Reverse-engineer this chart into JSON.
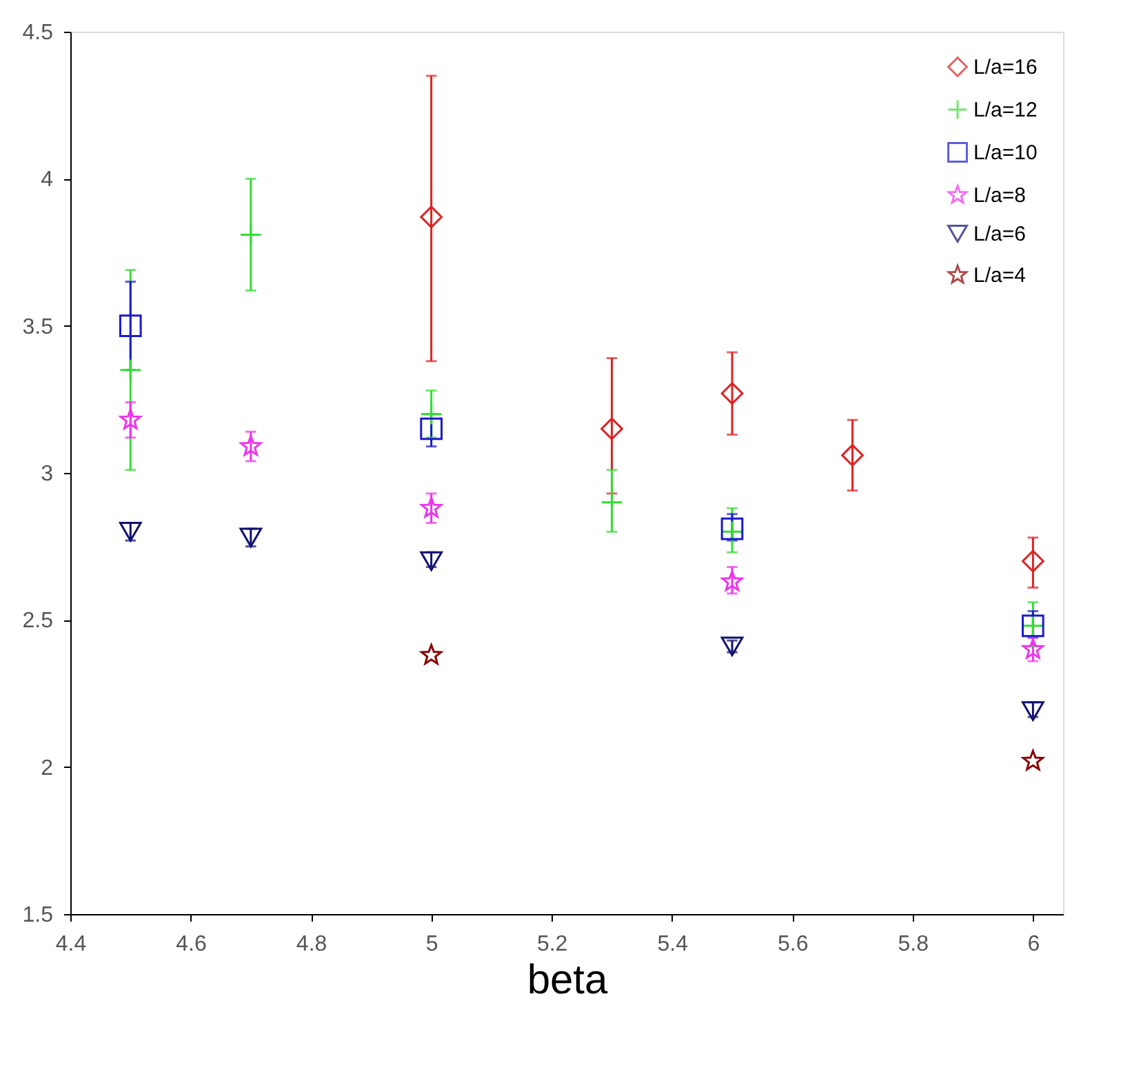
{
  "chart_data": {
    "type": "scatter",
    "xlabel": "beta",
    "xlim": [
      4.4,
      6.05
    ],
    "xticks": [
      4.4,
      4.6,
      4.8,
      5,
      5.2,
      5.4,
      5.6,
      5.8,
      6
    ],
    "ylim": [
      1.5,
      4.5
    ],
    "yticks": [
      1.5,
      2,
      2.5,
      3,
      3.5,
      4,
      4.5
    ],
    "grid": false,
    "legend": "top right",
    "series": [
      {
        "name": "L/a=16",
        "color": "#dd2222",
        "marker": "diamond",
        "x": [
          5.0,
          5.3,
          5.5,
          5.7,
          6.0
        ],
        "values": [
          3.87,
          3.15,
          3.27,
          3.06,
          2.7
        ],
        "errors": [
          [
            3.38,
            4.35
          ],
          [
            2.93,
            3.39
          ],
          [
            3.13,
            3.41
          ],
          [
            2.94,
            3.18
          ],
          [
            2.61,
            2.78
          ]
        ]
      },
      {
        "name": "L/a=12",
        "color": "#33dd33",
        "marker": "cross",
        "x": [
          4.5,
          4.7,
          5.0,
          5.3,
          5.5,
          6.0
        ],
        "values": [
          3.35,
          3.81,
          3.2,
          2.9,
          2.8,
          2.48
        ],
        "errors": [
          [
            3.01,
            3.69
          ],
          [
            3.62,
            4.0
          ],
          [
            3.12,
            3.28
          ],
          [
            2.8,
            3.01
          ],
          [
            2.73,
            2.88
          ],
          [
            2.41,
            2.56
          ]
        ]
      },
      {
        "name": "L/a=10",
        "color": "#1a1acc",
        "marker": "square",
        "x": [
          4.5,
          5.0,
          5.5,
          6.0
        ],
        "values": [
          3.5,
          3.15,
          2.81,
          2.48
        ],
        "errors": [
          [
            3.35,
            3.65
          ],
          [
            3.09,
            3.2
          ],
          [
            2.77,
            2.86
          ],
          [
            2.44,
            2.53
          ]
        ]
      },
      {
        "name": "L/a=8",
        "color": "#ee33ee",
        "marker": "star",
        "x": [
          4.5,
          4.7,
          5.0,
          5.5,
          6.0
        ],
        "values": [
          3.18,
          3.09,
          2.88,
          2.63,
          2.4
        ],
        "errors": [
          [
            3.12,
            3.24
          ],
          [
            3.04,
            3.14
          ],
          [
            2.83,
            2.93
          ],
          [
            2.59,
            2.68
          ],
          [
            2.36,
            2.44
          ]
        ]
      },
      {
        "name": "L/a=6",
        "color": "#101070",
        "marker": "triangle",
        "x": [
          4.5,
          4.7,
          5.0,
          5.5,
          6.0
        ],
        "values": [
          2.8,
          2.78,
          2.7,
          2.41,
          2.19
        ],
        "errors": [
          [
            2.77,
            2.83
          ],
          [
            2.75,
            2.81
          ],
          [
            2.68,
            2.73
          ],
          [
            2.39,
            2.43
          ],
          [
            2.17,
            2.22
          ]
        ]
      },
      {
        "name": "L/a=4",
        "color": "#8b0000",
        "marker": "star",
        "x": [
          5.0,
          6.0
        ],
        "values": [
          2.38,
          2.02
        ]
      }
    ]
  }
}
